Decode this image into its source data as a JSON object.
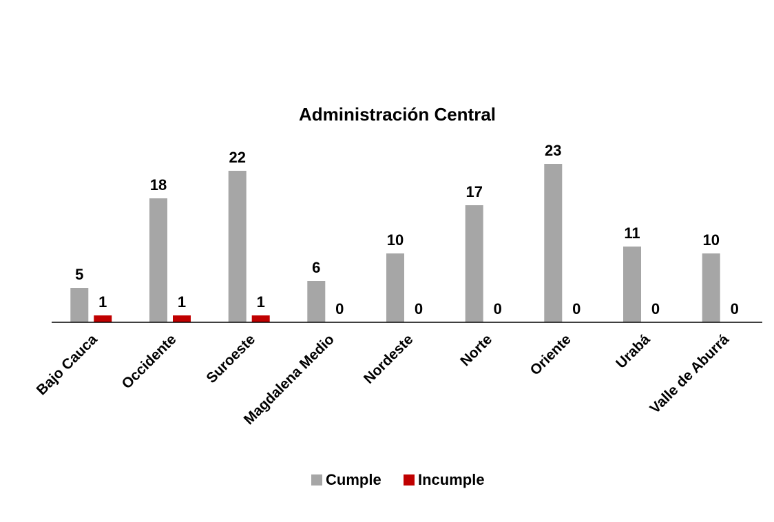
{
  "chart_data": {
    "type": "bar",
    "title": "Administración Central",
    "categories": [
      "Bajo Cauca",
      "Occidente",
      "Suroeste",
      "Magdalena Medio",
      "Nordeste",
      "Norte",
      "Oriente",
      "Urabá",
      "Valle de Aburrá"
    ],
    "series": [
      {
        "name": "Cumple",
        "color": "#a6a6a6",
        "values": [
          5,
          18,
          22,
          6,
          10,
          17,
          23,
          11,
          10
        ]
      },
      {
        "name": "Incumple",
        "color": "#c00000",
        "values": [
          1,
          1,
          1,
          0,
          0,
          0,
          0,
          0,
          0
        ]
      }
    ],
    "ylim": [
      0,
      23
    ],
    "grid": false,
    "legend_position": "bottom",
    "data_labels": true
  }
}
